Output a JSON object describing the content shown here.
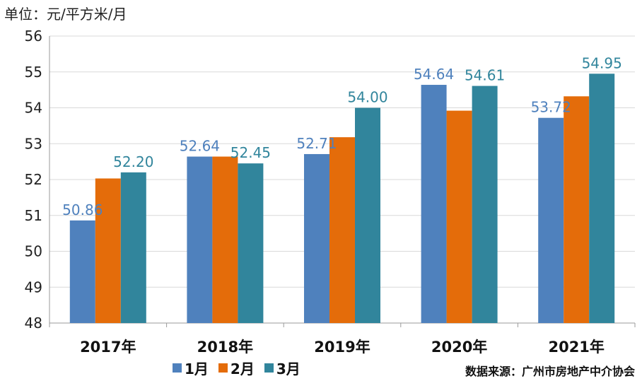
{
  "unit_label": "单位：元/平方米/月",
  "source": "数据来源：广州市房地产中介协会",
  "chart_data": {
    "type": "bar",
    "categories": [
      "2017年",
      "2018年",
      "2019年",
      "2020年",
      "2021年"
    ],
    "series": [
      {
        "name": "1月",
        "color": "#4f81bd",
        "values": [
          50.86,
          52.64,
          52.71,
          54.64,
          53.72
        ]
      },
      {
        "name": "2月",
        "color": "#e46c0a",
        "values": [
          52.03,
          52.64,
          53.18,
          53.92,
          54.32
        ]
      },
      {
        "name": "3月",
        "color": "#31859c",
        "values": [
          52.2,
          52.45,
          54.0,
          54.61,
          54.95
        ]
      }
    ],
    "data_labels": [
      {
        "category": 0,
        "series": 0,
        "text": "50.86"
      },
      {
        "category": 0,
        "series": 2,
        "text": "52.20"
      },
      {
        "category": 1,
        "series": 0,
        "text": "52.64"
      },
      {
        "category": 1,
        "series": 2,
        "text": "52.45"
      },
      {
        "category": 2,
        "series": 0,
        "text": "52.71"
      },
      {
        "category": 2,
        "series": 2,
        "text": "54.00"
      },
      {
        "category": 3,
        "series": 0,
        "text": "54.64"
      },
      {
        "category": 3,
        "series": 2,
        "text": "54.61"
      },
      {
        "category": 4,
        "series": 0,
        "text": "53.72"
      },
      {
        "category": 4,
        "series": 2,
        "text": "54.95"
      }
    ],
    "ylim": [
      48,
      56
    ],
    "yticks": [
      "48",
      "49",
      "50",
      "51",
      "52",
      "53",
      "54",
      "55",
      "56"
    ],
    "grid": true,
    "legend_position": "bottom"
  }
}
